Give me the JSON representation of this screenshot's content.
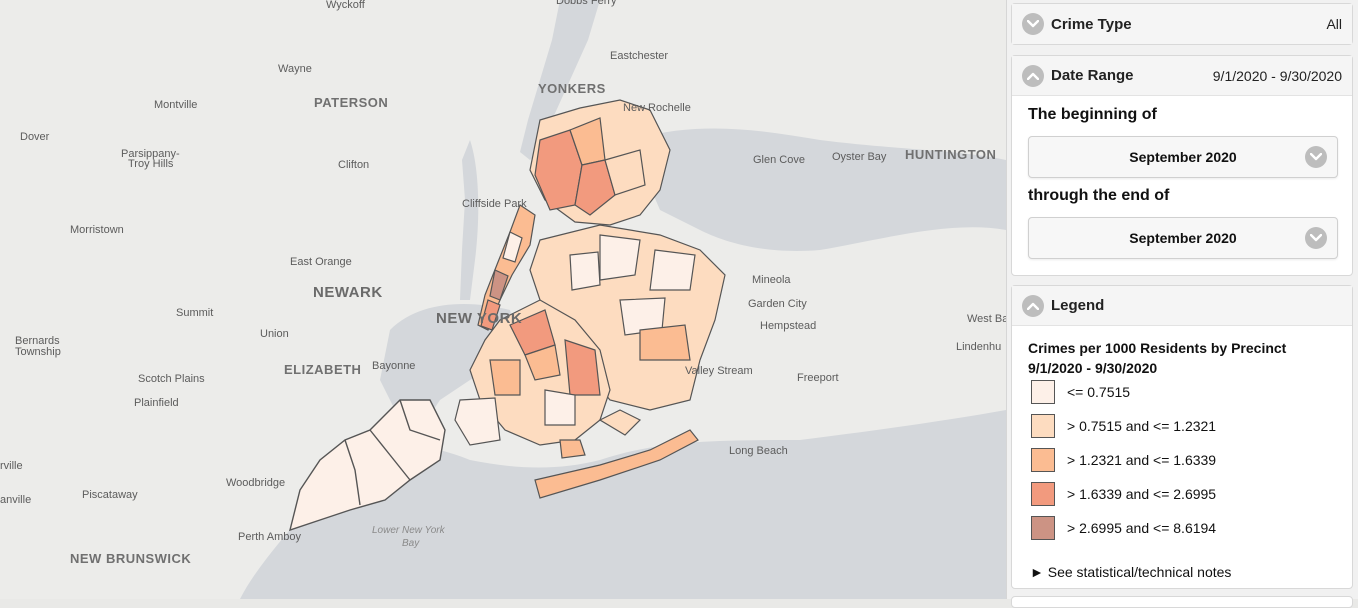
{
  "map": {
    "labels": [
      {
        "text": "Wyckoff",
        "cls": ""
      },
      {
        "text": "Dobbs Ferry",
        "cls": ""
      },
      {
        "text": "Wayne",
        "cls": ""
      },
      {
        "text": "Eastchester",
        "cls": ""
      },
      {
        "text": "Montville",
        "cls": ""
      },
      {
        "text": "PATERSON",
        "cls": "big"
      },
      {
        "text": "YONKERS",
        "cls": "big"
      },
      {
        "text": "New Rochelle",
        "cls": ""
      },
      {
        "text": "Dover",
        "cls": ""
      },
      {
        "text": "Parsippany-",
        "cls": ""
      },
      {
        "text": "Troy Hills",
        "cls": ""
      },
      {
        "text": "Clifton",
        "cls": ""
      },
      {
        "text": "Glen Cove",
        "cls": ""
      },
      {
        "text": "Oyster Bay",
        "cls": ""
      },
      {
        "text": "HUNTINGTON",
        "cls": "big"
      },
      {
        "text": "Cliffside Park",
        "cls": ""
      },
      {
        "text": "Morristown",
        "cls": ""
      },
      {
        "text": "East Orange",
        "cls": ""
      },
      {
        "text": "Mineola",
        "cls": ""
      },
      {
        "text": "NEWARK",
        "cls": "city"
      },
      {
        "text": "Garden City",
        "cls": ""
      },
      {
        "text": "Summit",
        "cls": ""
      },
      {
        "text": "NEW YORK",
        "cls": "city"
      },
      {
        "text": "Hempstead",
        "cls": ""
      },
      {
        "text": "West Ba",
        "cls": ""
      },
      {
        "text": "Bernards",
        "cls": ""
      },
      {
        "text": "Township",
        "cls": ""
      },
      {
        "text": "Union",
        "cls": ""
      },
      {
        "text": "Lindenhu",
        "cls": ""
      },
      {
        "text": "ELIZABETH",
        "cls": "big"
      },
      {
        "text": "Bayonne",
        "cls": ""
      },
      {
        "text": "Valley Stream",
        "cls": ""
      },
      {
        "text": "Scotch Plains",
        "cls": ""
      },
      {
        "text": "Freeport",
        "cls": ""
      },
      {
        "text": "Plainfield",
        "cls": ""
      },
      {
        "text": "Long Beach",
        "cls": ""
      },
      {
        "text": "rville",
        "cls": ""
      },
      {
        "text": "Woodbridge",
        "cls": ""
      },
      {
        "text": "Piscataway",
        "cls": ""
      },
      {
        "text": "anville",
        "cls": ""
      },
      {
        "text": "Lower New York",
        "cls": "water"
      },
      {
        "text": "Bay",
        "cls": "water"
      },
      {
        "text": "Perth Amboy",
        "cls": ""
      },
      {
        "text": "NEW BRUNSWICK",
        "cls": "big"
      }
    ]
  },
  "filters": {
    "crime_type": {
      "label": "Crime Type",
      "value": "All"
    },
    "date_range": {
      "label": "Date Range",
      "value": "9/1/2020 - 9/30/2020",
      "begin_label": "The beginning of",
      "begin_value": "September 2020",
      "end_label": "through the end of",
      "end_value": "September 2020"
    }
  },
  "legend": {
    "label": "Legend",
    "title": "Crimes per 1000 Residents by Precinct",
    "subtitle": "9/1/2020 - 9/30/2020",
    "items": [
      {
        "label": "<= 0.7515",
        "color": "#fdf0e8"
      },
      {
        "label": "> 0.7515 and <= 1.2321",
        "color": "#fddcc0"
      },
      {
        "label": "> 1.2321 and <= 1.6339",
        "color": "#fbbc92"
      },
      {
        "label": "> 1.6339 and <= 2.6995",
        "color": "#f29a7e"
      },
      {
        "label": "> 2.6995 and <= 8.6194",
        "color": "#cc9384"
      }
    ],
    "notes": "► See statistical/technical notes"
  }
}
